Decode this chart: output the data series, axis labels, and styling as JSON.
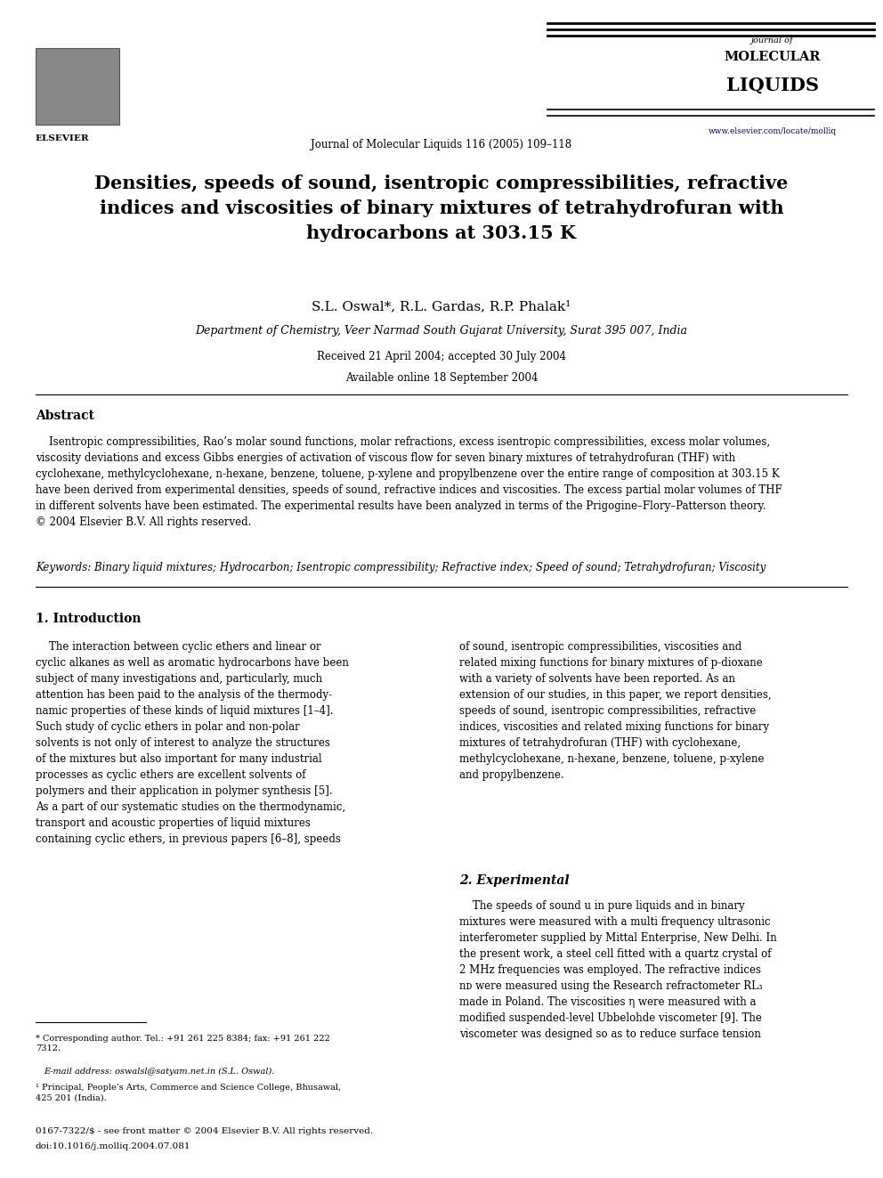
{
  "page_width": 9.92,
  "page_height": 13.23,
  "bg_color": "#ffffff",
  "header_journal_center": "Journal of Molecular Liquids 116 (2005) 109–118",
  "journal_name_line1": "journal of",
  "journal_name_line2": "MOLECULAR",
  "journal_name_line3": "LIQUIDS",
  "website": "www.elsevier.com/locate/molliq",
  "title": "Densities, speeds of sound, isentropic compressibilities, refractive\nindices and viscosities of binary mixtures of tetrahydrofuran with\nhydrocarbons at 303.15 K",
  "title_fontsize": 15,
  "authors": "S.L. Oswal*, R.L. Gardas, R.P. Phalak¹",
  "authors_fontsize": 11,
  "affiliation": "Department of Chemistry, Veer Narmad South Gujarat University, Surat 395 007, India",
  "affiliation_fontsize": 9,
  "dates_line1": "Received 21 April 2004; accepted 30 July 2004",
  "dates_line2": "Available online 18 September 2004",
  "dates_fontsize": 8.5,
  "abstract_title": "Abstract",
  "abstract_title_fontsize": 10,
  "keywords_label": "Keywords:",
  "keywords_text": "Binary liquid mixtures; Hydrocarbon; Isentropic compressibility; Refractive index; Speed of sound; Tetrahydrofuran; Viscosity",
  "keywords_fontsize": 8.5,
  "section1_title": "1. Introduction",
  "section1_fontsize": 10,
  "section2_title": "2. Experimental",
  "section2_fontsize": 10,
  "footer1": "0167-7322/$ - see front matter © 2004 Elsevier B.V. All rights reserved.",
  "footer2": "doi:10.1016/j.molliq.2004.07.081",
  "footer_fontsize": 7.5,
  "body_fontsize": 8.5,
  "text_color": "#000000"
}
